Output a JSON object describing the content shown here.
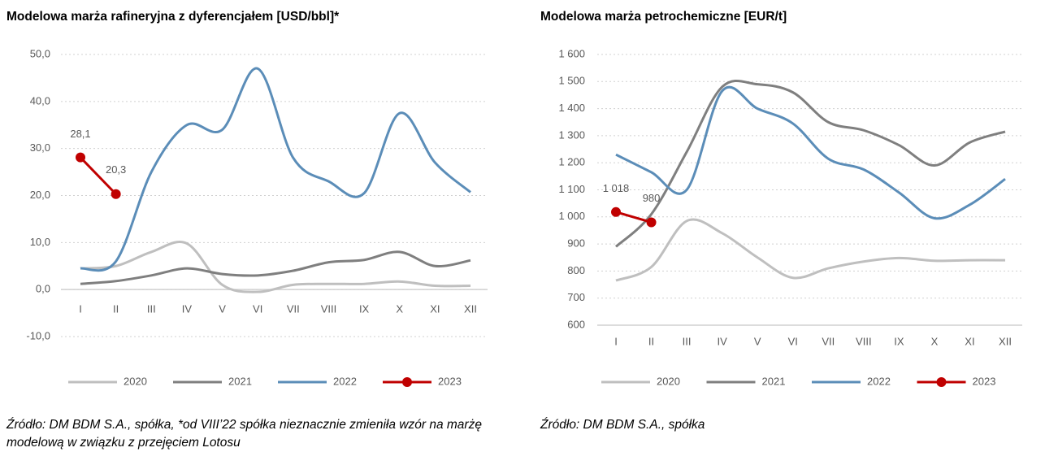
{
  "chart_data": [
    {
      "type": "line",
      "title": "Modelowa marża rafineryjna z dyferencjałem [USD/bbl]*",
      "categories": [
        "I",
        "II",
        "III",
        "IV",
        "V",
        "VI",
        "VII",
        "VIII",
        "IX",
        "X",
        "XI",
        "XII"
      ],
      "ylim": [
        -10,
        50
      ],
      "yticks": [
        {
          "value": -10,
          "label": "-10,0"
        },
        {
          "value": 0,
          "label": "0,0"
        },
        {
          "value": 10,
          "label": "10,0"
        },
        {
          "value": 20,
          "label": "20,0"
        },
        {
          "value": 30,
          "label": "30,0"
        },
        {
          "value": 40,
          "label": "40,0"
        },
        {
          "value": 50,
          "label": "50,0"
        }
      ],
      "grid": true,
      "legend": "bottom",
      "series": [
        {
          "name": "2020",
          "color": "#bfbfbf",
          "values": [
            4.5,
            5,
            8,
            9.8,
            1,
            -0.5,
            1,
            1.2,
            1.2,
            1.7,
            0.8,
            0.8
          ]
        },
        {
          "name": "2021",
          "color": "#7f7f7f",
          "values": [
            1.2,
            1.8,
            3,
            4.5,
            3.3,
            3,
            4,
            5.8,
            6.3,
            8,
            5,
            6.2
          ]
        },
        {
          "name": "2022",
          "color": "#5b8db8",
          "values": [
            4.5,
            6,
            25,
            35,
            34,
            47,
            28,
            23,
            20.5,
            37.5,
            27,
            20.7
          ]
        },
        {
          "name": "2023",
          "color": "#c00000",
          "markers": true,
          "values": [
            28.1,
            20.3,
            null,
            null,
            null,
            null,
            null,
            null,
            null,
            null,
            null,
            null
          ],
          "value_labels": [
            "28,1",
            "20,3",
            null,
            null,
            null,
            null,
            null,
            null,
            null,
            null,
            null,
            null
          ]
        }
      ],
      "source": "Źródło: DM BDM S.A., spółka, *od VIII’22 spółka nieznacznie zmieniła wzór na marżę modelową w związku z przejęciem Lotosu"
    },
    {
      "type": "line",
      "title": "Modelowa marża petrochemiczne [EUR/t]",
      "categories": [
        "I",
        "II",
        "III",
        "IV",
        "V",
        "VI",
        "VII",
        "VIII",
        "IX",
        "X",
        "XI",
        "XII"
      ],
      "ylim": [
        600,
        1600
      ],
      "yticks": [
        600,
        700,
        800,
        900,
        {
          "value": 1000,
          "label": "1 000"
        },
        {
          "value": 1100,
          "label": "1 100"
        },
        {
          "value": 1200,
          "label": "1 200"
        },
        {
          "value": 1300,
          "label": "1 300"
        },
        {
          "value": 1400,
          "label": "1 400"
        },
        {
          "value": 1500,
          "label": "1 500"
        },
        {
          "value": 1600,
          "label": "1 600"
        }
      ],
      "grid": true,
      "legend": "bottom",
      "series": [
        {
          "name": "2020",
          "color": "#bfbfbf",
          "values": [
            765,
            815,
            985,
            940,
            850,
            775,
            810,
            835,
            848,
            838,
            840,
            840
          ]
        },
        {
          "name": "2021",
          "color": "#7f7f7f",
          "values": [
            890,
            1010,
            1240,
            1480,
            1490,
            1460,
            1350,
            1320,
            1265,
            1190,
            1275,
            1315
          ]
        },
        {
          "name": "2022",
          "color": "#5b8db8",
          "values": [
            1230,
            1165,
            1100,
            1465,
            1400,
            1345,
            1215,
            1175,
            1090,
            995,
            1045,
            1140
          ]
        },
        {
          "name": "2023",
          "color": "#c00000",
          "markers": true,
          "values": [
            1018,
            980,
            null,
            null,
            null,
            null,
            null,
            null,
            null,
            null,
            null,
            null
          ],
          "value_labels": [
            "1 018",
            "980",
            null,
            null,
            null,
            null,
            null,
            null,
            null,
            null,
            null,
            null
          ]
        }
      ],
      "source": "Źródło: DM BDM S.A., spółka"
    }
  ]
}
